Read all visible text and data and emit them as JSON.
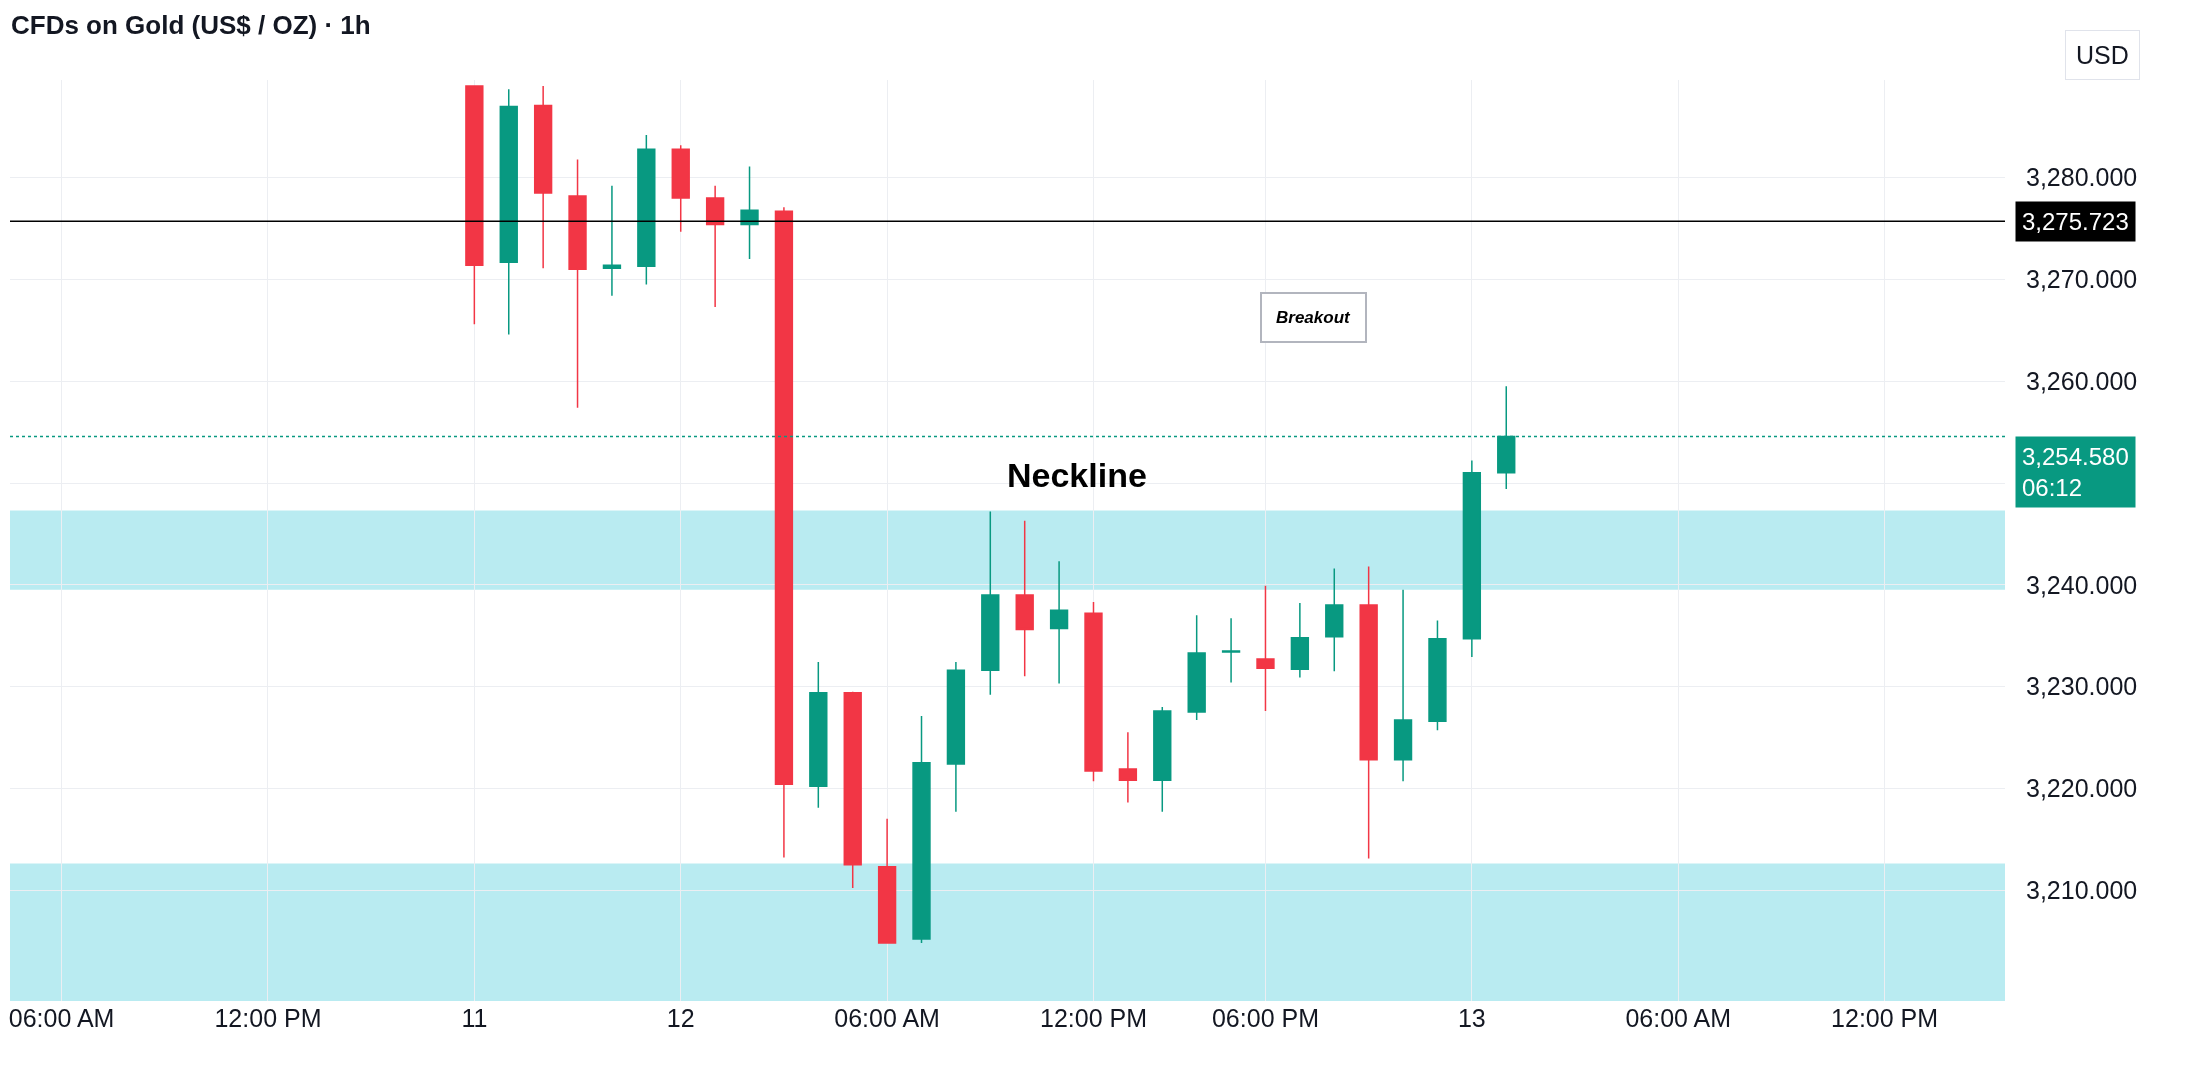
{
  "chart_data": {
    "type": "candlestick",
    "title": "CFDs on Gold (US$ / OZ) · 1h",
    "ylabel": "USD",
    "categories": [
      null,
      "06:00 AM",
      null,
      null,
      null,
      null,
      null,
      "12:00 PM",
      null,
      null,
      null,
      null,
      null,
      "11",
      null,
      null,
      null,
      null,
      null,
      "12",
      null,
      null,
      null,
      null,
      null,
      "06:00 AM",
      null,
      null,
      null,
      null,
      null,
      "12:00 PM",
      null,
      null,
      null,
      null,
      "06:00 PM",
      null,
      null,
      null,
      null,
      null,
      "13",
      null,
      null,
      null,
      null,
      null,
      "06:00 AM",
      null,
      null,
      null,
      null,
      null,
      "12:00 PM",
      null,
      null,
      null
    ],
    "ohlc": [
      null,
      null,
      null,
      null,
      null,
      null,
      null,
      null,
      null,
      null,
      null,
      null,
      null,
      [
        3289.0,
        3289.0,
        3265.6,
        3271.4
      ],
      [
        3271.7,
        3288.7,
        3264.6,
        3287.0
      ],
      [
        3287.1,
        3289.0,
        3271.1,
        3278.5
      ],
      [
        3278.2,
        3281.8,
        3257.4,
        3271.0
      ],
      [
        3271.1,
        3279.2,
        3268.4,
        3271.4
      ],
      [
        3271.3,
        3284.2,
        3269.5,
        3282.8
      ],
      [
        3282.8,
        3283.2,
        3274.7,
        3278.0
      ],
      [
        3278.0,
        3279.2,
        3267.3,
        3275.4
      ],
      [
        3275.4,
        3281.1,
        3272.0,
        3276.8
      ],
      [
        3276.7,
        3277.1,
        3213.2,
        3220.4
      ],
      [
        3220.2,
        3232.4,
        3218.1,
        3229.4
      ],
      [
        3229.4,
        3229.5,
        3210.2,
        3212.5
      ],
      [
        3212.3,
        3217.0,
        3204.8,
        3204.8
      ],
      [
        3205.2,
        3227.1,
        3204.8,
        3222.5
      ],
      [
        3222.4,
        3232.4,
        3217.7,
        3231.6
      ],
      [
        3231.6,
        3247.2,
        3229.2,
        3239.0
      ],
      [
        3239.0,
        3246.3,
        3231.0,
        3235.6
      ],
      [
        3235.7,
        3242.3,
        3230.3,
        3237.5
      ],
      [
        3237.2,
        3238.3,
        3220.7,
        3221.7
      ],
      [
        3221.9,
        3225.5,
        3218.6,
        3220.8
      ],
      [
        3220.8,
        3228.0,
        3217.7,
        3227.6
      ],
      [
        3227.5,
        3237.0,
        3226.7,
        3233.3
      ],
      [
        3233.4,
        3236.7,
        3230.4,
        3233.5
      ],
      [
        3232.7,
        3239.9,
        3227.6,
        3231.8
      ],
      [
        3231.7,
        3238.2,
        3230.9,
        3234.8
      ],
      [
        3234.9,
        3241.6,
        3231.5,
        3238.0
      ],
      [
        3238.0,
        3241.8,
        3213.1,
        3222.8
      ],
      [
        3222.8,
        3239.5,
        3220.7,
        3226.7
      ],
      [
        3226.6,
        3236.5,
        3225.7,
        3234.7
      ],
      [
        3234.7,
        3252.2,
        3232.9,
        3251.0
      ],
      [
        3251.0,
        3259.5,
        3249.4,
        3254.58
      ],
      null,
      null,
      null,
      null,
      null,
      null,
      null,
      null,
      null,
      null,
      null,
      null,
      null,
      null
    ],
    "colors": [
      null,
      null,
      null,
      null,
      null,
      null,
      null,
      null,
      null,
      null,
      null,
      null,
      null,
      "#f23645",
      "#089981",
      "#f23645",
      "#f23645",
      "#089981",
      "#089981",
      "#f23645",
      "#f23645",
      "#089981",
      "#f23645",
      "#089981",
      "#f23645",
      "#f23645",
      "#089981",
      "#089981",
      "#089981",
      "#f23645",
      "#089981",
      "#f23645",
      "#f23645",
      "#089981",
      "#089981",
      "#089981",
      "#f23645",
      "#089981",
      "#089981",
      "#f23645",
      "#089981",
      "#089981",
      "#089981",
      "#089981",
      null,
      null,
      null,
      null,
      null,
      null,
      null,
      null,
      null,
      null,
      null,
      null,
      null,
      null
    ],
    "ylim": [
      3199.1,
      3289.6
    ],
    "yticks": [
      {
        "value": 3210,
        "label": "3,210.000"
      },
      {
        "value": 3220,
        "label": "3,220.000"
      },
      {
        "value": 3230,
        "label": "3,230.000"
      },
      {
        "value": 3240,
        "label": "3,240.000"
      },
      {
        "value": 3250,
        "label": null
      },
      {
        "value": 3260,
        "label": "3,260.000"
      },
      {
        "value": 3270,
        "label": "3,270.000"
      },
      {
        "value": 3280,
        "label": "3,280.000"
      }
    ],
    "ref_lines": [
      {
        "axis": "y",
        "value": 3275.723,
        "label": "3,275.723",
        "color": "#000000",
        "line_style": "solid"
      },
      {
        "axis": "y",
        "value": 3254.58,
        "label": "3,254.580\n06:12",
        "color": "#089981",
        "line_style": "dotted"
      }
    ],
    "bands": [
      {
        "axis": "y",
        "from": 3239.5,
        "to": 3247.3,
        "color": "#b9ebf1",
        "label": "Neckline"
      },
      {
        "axis": "y",
        "from": 3199.1,
        "to": 3212.6,
        "color": "#b9ebf1"
      }
    ],
    "annotations": [
      "Breakout"
    ],
    "grid": true
  }
}
